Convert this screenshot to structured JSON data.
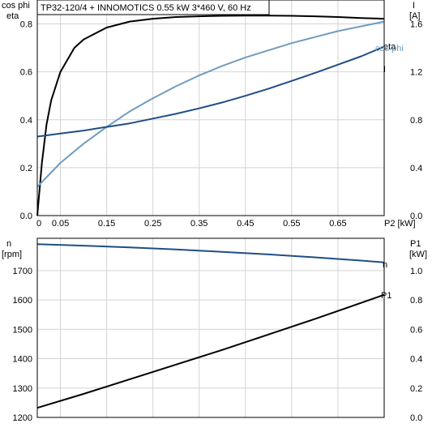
{
  "title": "TP32-120/4 + INNOMOTICS   0.55 kW   3*460 V, 60 Hz",
  "chart_data": [
    {
      "type": "line",
      "panel": "top",
      "title": "TP32-120/4 + INNOMOTICS   0.55 kW   3*460 V, 60 Hz",
      "xlabel": "P2 [kW]",
      "ylabel_left": [
        "cos phi",
        "eta"
      ],
      "ylabel_right": [
        "I",
        "[A]"
      ],
      "xlim": [
        0,
        0.75
      ],
      "ylim_left": [
        0,
        0.9
      ],
      "ylim_right": [
        0,
        1.8
      ],
      "x_ticks": [
        "0",
        "0.05",
        "0.15",
        "0.25",
        "0.35",
        "0.45",
        "0.55",
        "0.65",
        "P2 [kW]"
      ],
      "x_tick_values": [
        0,
        0.05,
        0.15,
        0.25,
        0.35,
        0.45,
        0.55,
        0.65,
        0.75
      ],
      "left_ticks": [
        "0.0",
        "0.2",
        "0.4",
        "0.6",
        "0.8"
      ],
      "left_tick_values": [
        0,
        0.2,
        0.4,
        0.6,
        0.8
      ],
      "right_ticks": [
        "0.0",
        "0.4",
        "0.8",
        "1.2",
        "1.6"
      ],
      "right_tick_values": [
        0,
        0.4,
        0.8,
        1.2,
        1.6
      ],
      "grid": true,
      "series": [
        {
          "name": "eta",
          "axis": "left",
          "color": "#000000",
          "x": [
            0,
            0.01,
            0.02,
            0.03,
            0.05,
            0.08,
            0.1,
            0.15,
            0.2,
            0.25,
            0.3,
            0.35,
            0.4,
            0.45,
            0.5,
            0.55,
            0.6,
            0.65,
            0.7,
            0.75
          ],
          "y": [
            0,
            0.22,
            0.38,
            0.48,
            0.6,
            0.7,
            0.735,
            0.785,
            0.81,
            0.822,
            0.829,
            0.832,
            0.834,
            0.835,
            0.835,
            0.834,
            0.832,
            0.829,
            0.825,
            0.822
          ]
        },
        {
          "name": "cos phi",
          "axis": "left",
          "color": "#6f9cc0",
          "x": [
            0,
            0.05,
            0.1,
            0.15,
            0.2,
            0.25,
            0.3,
            0.35,
            0.4,
            0.45,
            0.5,
            0.55,
            0.6,
            0.65,
            0.7,
            0.75
          ],
          "y": [
            0.12,
            0.22,
            0.3,
            0.37,
            0.435,
            0.49,
            0.54,
            0.585,
            0.625,
            0.66,
            0.69,
            0.72,
            0.745,
            0.77,
            0.79,
            0.81
          ]
        },
        {
          "name": "I",
          "axis": "right",
          "color": "#1f4e85",
          "x": [
            0,
            0.05,
            0.1,
            0.15,
            0.2,
            0.25,
            0.3,
            0.35,
            0.4,
            0.45,
            0.5,
            0.55,
            0.6,
            0.65,
            0.7,
            0.75
          ],
          "y": [
            0.66,
            0.685,
            0.71,
            0.74,
            0.77,
            0.81,
            0.85,
            0.895,
            0.945,
            1.0,
            1.06,
            1.125,
            1.19,
            1.26,
            1.33,
            1.41
          ]
        }
      ]
    },
    {
      "type": "line",
      "panel": "bottom",
      "ylabel_left": [
        "n",
        "[rpm]"
      ],
      "ylabel_right": [
        "P1",
        "[kW]"
      ],
      "xlim": [
        0,
        0.75
      ],
      "ylim_left": [
        1200,
        1810
      ],
      "ylim_right": [
        0,
        1.22
      ],
      "left_ticks": [
        "1200",
        "1300",
        "1400",
        "1500",
        "1600",
        "1700"
      ],
      "left_tick_values": [
        1200,
        1300,
        1400,
        1500,
        1600,
        1700
      ],
      "right_ticks": [
        "0.0",
        "0.2",
        "0.4",
        "0.6",
        "0.8",
        "1.0"
      ],
      "right_tick_values": [
        0,
        0.2,
        0.4,
        0.6,
        0.8,
        1.0
      ],
      "grid": true,
      "series": [
        {
          "name": "n",
          "axis": "left",
          "color": "#1f4e85",
          "x": [
            0,
            0.1,
            0.2,
            0.3,
            0.4,
            0.5,
            0.6,
            0.7,
            0.75
          ],
          "y": [
            1790,
            1785,
            1779,
            1772,
            1764,
            1755,
            1745,
            1734,
            1728
          ]
        },
        {
          "name": "P1",
          "axis": "right",
          "color": "#000000",
          "x": [
            0,
            0.1,
            0.2,
            0.3,
            0.4,
            0.5,
            0.6,
            0.7,
            0.75
          ],
          "y": [
            0.065,
            0.16,
            0.26,
            0.36,
            0.46,
            0.565,
            0.67,
            0.78,
            0.835
          ]
        }
      ]
    }
  ]
}
